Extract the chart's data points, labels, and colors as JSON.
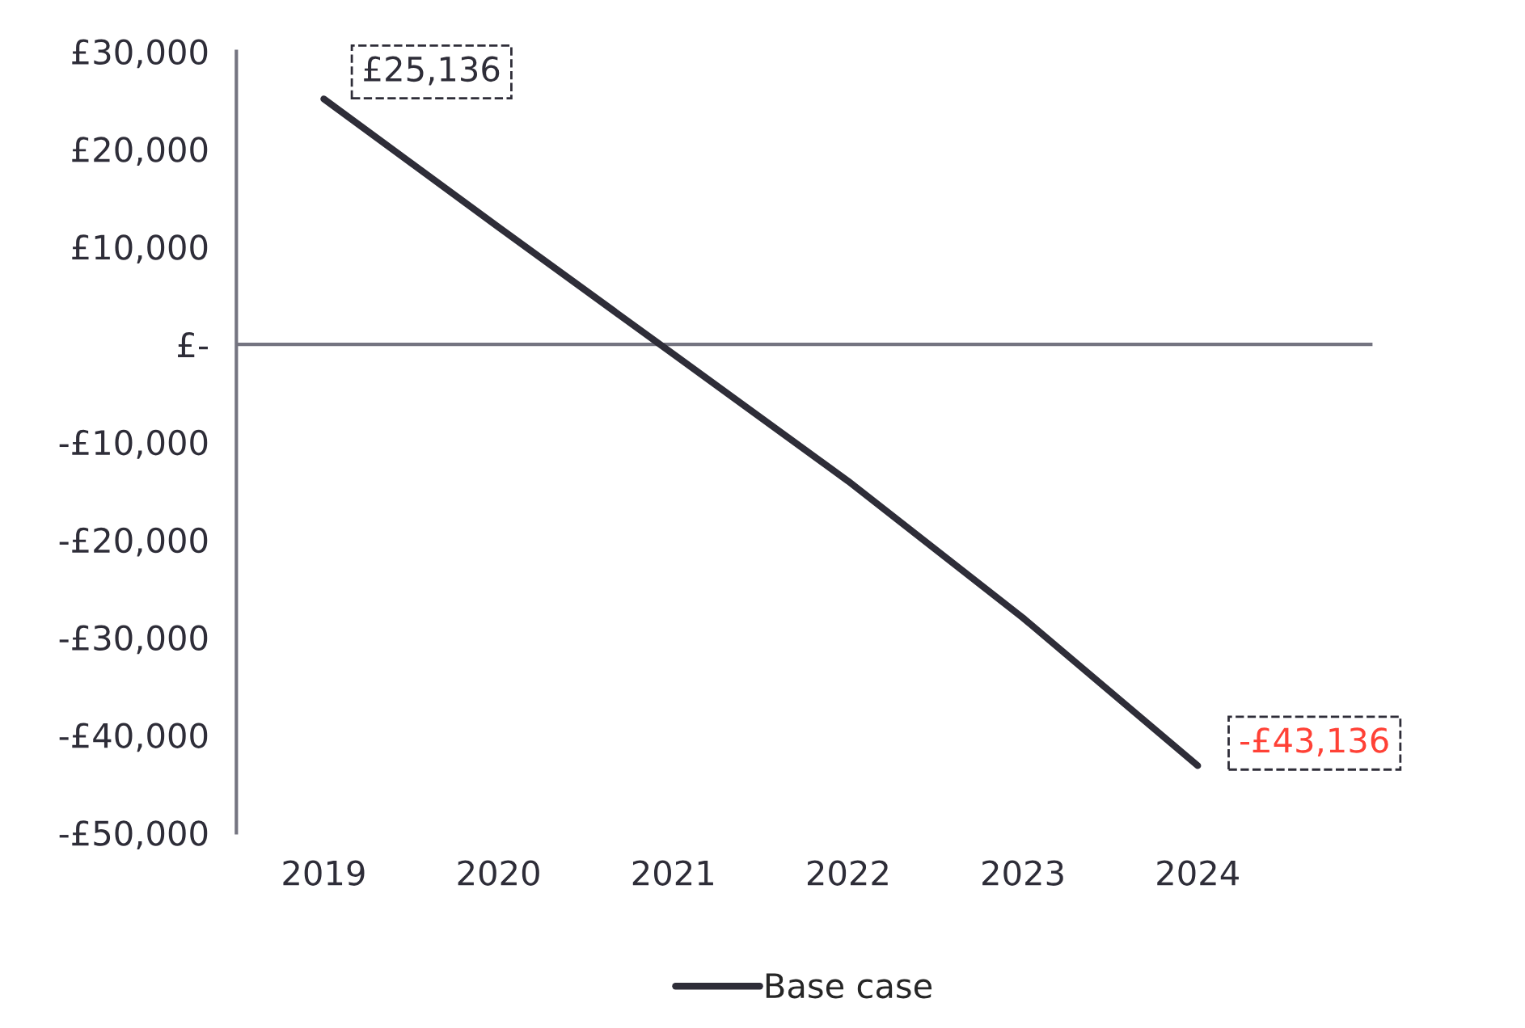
{
  "chart_data": {
    "type": "line",
    "categories": [
      "2019",
      "2020",
      "2021",
      "2022",
      "2023",
      "2024"
    ],
    "series": [
      {
        "name": "Base case",
        "color": "#2e2d38",
        "values": [
          25136,
          12000,
          -1000,
          -14000,
          -28000,
          -43136
        ],
        "value_labels": [
          "£25,136",
          null,
          null,
          null,
          null,
          "-£43,136"
        ]
      }
    ],
    "ylim": [
      -50000,
      30000
    ],
    "yticks": [
      {
        "value": 30000,
        "label": "£30,000"
      },
      {
        "value": 20000,
        "label": "£20,000"
      },
      {
        "value": 10000,
        "label": "£10,000"
      },
      {
        "value": 0,
        "label": "£-"
      },
      {
        "value": -10000,
        "label": "-£10,000"
      },
      {
        "value": -20000,
        "label": "-£20,000"
      },
      {
        "value": -30000,
        "label": "-£30,000"
      },
      {
        "value": -40000,
        "label": "-£40,000"
      },
      {
        "value": -50000,
        "label": "-£50,000"
      }
    ],
    "ref_lines": [
      {
        "axis": "y",
        "value": 0,
        "color": "#747480"
      }
    ],
    "grid": false,
    "legend": "bottom",
    "marker": "none",
    "line_style": "solid"
  }
}
